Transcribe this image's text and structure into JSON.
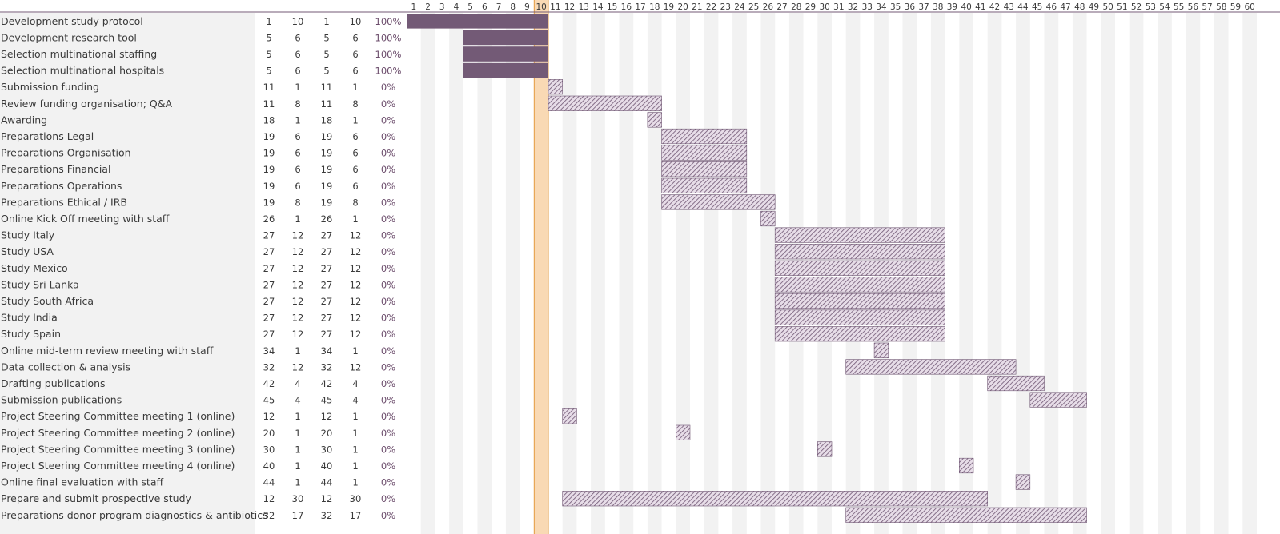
{
  "chart_data": {
    "type": "gantt",
    "periods": 60,
    "highlight_period": 10,
    "colors": {
      "bar_complete": "#735a76",
      "bar_hatch_line": "#6e5572",
      "bar_hatch_bg": "#e7dde8",
      "highlight_fill": "#f9d9b4",
      "highlight_border": "#e39a3e",
      "header_line": "#735a76",
      "name_column_bg": "#f2f2f2",
      "shade_column": "#f2f2f2"
    },
    "tasks": [
      {
        "name": "Development study protocol",
        "plan_start": 1,
        "plan_duration": 10,
        "actual_start": 1,
        "actual_duration": 10,
        "percent_complete": "100%"
      },
      {
        "name": "Development research tool",
        "plan_start": 5,
        "plan_duration": 6,
        "actual_start": 5,
        "actual_duration": 6,
        "percent_complete": "100%"
      },
      {
        "name": "Selection multinational staffing",
        "plan_start": 5,
        "plan_duration": 6,
        "actual_start": 5,
        "actual_duration": 6,
        "percent_complete": "100%"
      },
      {
        "name": "Selection multinational hospitals",
        "plan_start": 5,
        "plan_duration": 6,
        "actual_start": 5,
        "actual_duration": 6,
        "percent_complete": "100%"
      },
      {
        "name": "Submission funding",
        "plan_start": 11,
        "plan_duration": 1,
        "actual_start": 11,
        "actual_duration": 1,
        "percent_complete": "0%"
      },
      {
        "name": "Review funding organisation; Q&A",
        "plan_start": 11,
        "plan_duration": 8,
        "actual_start": 11,
        "actual_duration": 8,
        "percent_complete": "0%"
      },
      {
        "name": "Awarding",
        "plan_start": 18,
        "plan_duration": 1,
        "actual_start": 18,
        "actual_duration": 1,
        "percent_complete": "0%"
      },
      {
        "name": "Preparations Legal",
        "plan_start": 19,
        "plan_duration": 6,
        "actual_start": 19,
        "actual_duration": 6,
        "percent_complete": "0%"
      },
      {
        "name": "Preparations Organisation",
        "plan_start": 19,
        "plan_duration": 6,
        "actual_start": 19,
        "actual_duration": 6,
        "percent_complete": "0%"
      },
      {
        "name": "Preparations Financial",
        "plan_start": 19,
        "plan_duration": 6,
        "actual_start": 19,
        "actual_duration": 6,
        "percent_complete": "0%"
      },
      {
        "name": "Preparations Operations",
        "plan_start": 19,
        "plan_duration": 6,
        "actual_start": 19,
        "actual_duration": 6,
        "percent_complete": "0%"
      },
      {
        "name": "Preparations Ethical / IRB",
        "plan_start": 19,
        "plan_duration": 8,
        "actual_start": 19,
        "actual_duration": 8,
        "percent_complete": "0%"
      },
      {
        "name": "Online Kick Off meeting with staff",
        "plan_start": 26,
        "plan_duration": 1,
        "actual_start": 26,
        "actual_duration": 1,
        "percent_complete": "0%"
      },
      {
        "name": "Study Italy",
        "plan_start": 27,
        "plan_duration": 12,
        "actual_start": 27,
        "actual_duration": 12,
        "percent_complete": "0%"
      },
      {
        "name": "Study USA",
        "plan_start": 27,
        "plan_duration": 12,
        "actual_start": 27,
        "actual_duration": 12,
        "percent_complete": "0%"
      },
      {
        "name": "Study Mexico",
        "plan_start": 27,
        "plan_duration": 12,
        "actual_start": 27,
        "actual_duration": 12,
        "percent_complete": "0%"
      },
      {
        "name": "Study Sri Lanka",
        "plan_start": 27,
        "plan_duration": 12,
        "actual_start": 27,
        "actual_duration": 12,
        "percent_complete": "0%"
      },
      {
        "name": "Study South Africa",
        "plan_start": 27,
        "plan_duration": 12,
        "actual_start": 27,
        "actual_duration": 12,
        "percent_complete": "0%"
      },
      {
        "name": "Study India",
        "plan_start": 27,
        "plan_duration": 12,
        "actual_start": 27,
        "actual_duration": 12,
        "percent_complete": "0%"
      },
      {
        "name": "Study Spain",
        "plan_start": 27,
        "plan_duration": 12,
        "actual_start": 27,
        "actual_duration": 12,
        "percent_complete": "0%"
      },
      {
        "name": "Online mid-term review meeting with staff",
        "plan_start": 34,
        "plan_duration": 1,
        "actual_start": 34,
        "actual_duration": 1,
        "percent_complete": "0%"
      },
      {
        "name": "Data collection & analysis",
        "plan_start": 32,
        "plan_duration": 12,
        "actual_start": 32,
        "actual_duration": 12,
        "percent_complete": "0%"
      },
      {
        "name": "Drafting publications",
        "plan_start": 42,
        "plan_duration": 4,
        "actual_start": 42,
        "actual_duration": 4,
        "percent_complete": "0%"
      },
      {
        "name": "Submission publications",
        "plan_start": 45,
        "plan_duration": 4,
        "actual_start": 45,
        "actual_duration": 4,
        "percent_complete": "0%"
      },
      {
        "name": "Project Steering Committee meeting 1 (online)",
        "plan_start": 12,
        "plan_duration": 1,
        "actual_start": 12,
        "actual_duration": 1,
        "percent_complete": "0%"
      },
      {
        "name": "Project Steering Committee meeting 2 (online)",
        "plan_start": 20,
        "plan_duration": 1,
        "actual_start": 20,
        "actual_duration": 1,
        "percent_complete": "0%"
      },
      {
        "name": "Project Steering Committee meeting 3 (online)",
        "plan_start": 30,
        "plan_duration": 1,
        "actual_start": 30,
        "actual_duration": 1,
        "percent_complete": "0%"
      },
      {
        "name": "Project Steering Committee meeting 4 (online)",
        "plan_start": 40,
        "plan_duration": 1,
        "actual_start": 40,
        "actual_duration": 1,
        "percent_complete": "0%"
      },
      {
        "name": "Online final evaluation with staff",
        "plan_start": 44,
        "plan_duration": 1,
        "actual_start": 44,
        "actual_duration": 1,
        "percent_complete": "0%"
      },
      {
        "name": "Prepare and submit prospective study",
        "plan_start": 12,
        "plan_duration": 30,
        "actual_start": 12,
        "actual_duration": 30,
        "percent_complete": "0%"
      },
      {
        "name": "Preparations donor program diagnostics & antibiotics",
        "plan_start": 32,
        "plan_duration": 17,
        "actual_start": 32,
        "actual_duration": 17,
        "percent_complete": "0%"
      }
    ]
  }
}
